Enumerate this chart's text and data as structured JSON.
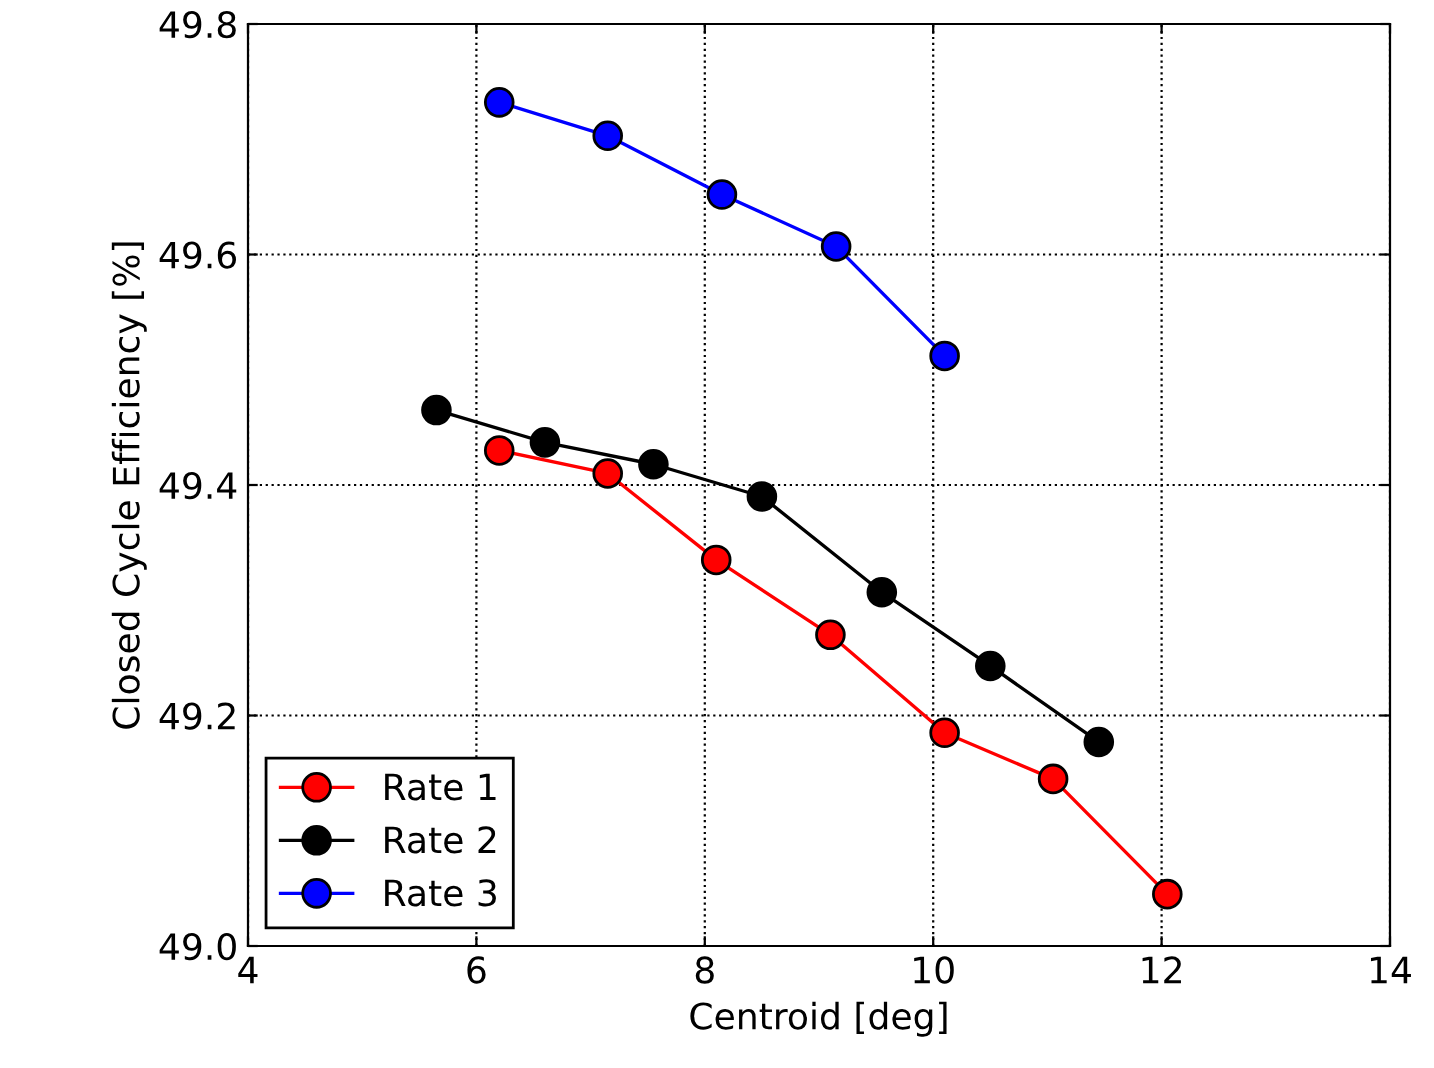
{
  "chart_data": {
    "type": "line",
    "xlabel": "Centroid [deg]",
    "ylabel": "Closed Cycle Efficiency [%]",
    "xlim": [
      4,
      14
    ],
    "xticks": [
      4,
      6,
      8,
      10,
      12,
      14
    ],
    "ylim": [
      49.0,
      49.8
    ],
    "yticks": [
      {
        "value": 49.0,
        "label": "49.0"
      },
      {
        "value": 49.2,
        "label": "49.2"
      },
      {
        "value": 49.4,
        "label": "49.4"
      },
      {
        "value": 49.6,
        "label": "49.6"
      },
      {
        "value": 49.8,
        "label": "49.8"
      }
    ],
    "grid": true,
    "legend": "bottom left",
    "marker": "circle",
    "line_style": "solid",
    "series": [
      {
        "name": "Rate 1",
        "color": "#ff0000",
        "x": [
          6.2,
          7.15,
          8.1,
          9.1,
          10.1,
          11.05,
          12.05
        ],
        "values": [
          49.43,
          49.41,
          49.335,
          49.27,
          49.185,
          49.145,
          49.045
        ]
      },
      {
        "name": "Rate 2",
        "color": "#000000",
        "x": [
          5.65,
          6.6,
          7.55,
          8.5,
          9.55,
          10.5,
          11.45
        ],
        "values": [
          49.465,
          49.437,
          49.418,
          49.39,
          49.307,
          49.243,
          49.177
        ]
      },
      {
        "name": "Rate 3",
        "color": "#0000ff",
        "x": [
          6.2,
          7.15,
          8.15,
          9.15,
          10.1
        ],
        "values": [
          49.732,
          49.703,
          49.652,
          49.607,
          49.512
        ]
      }
    ]
  }
}
